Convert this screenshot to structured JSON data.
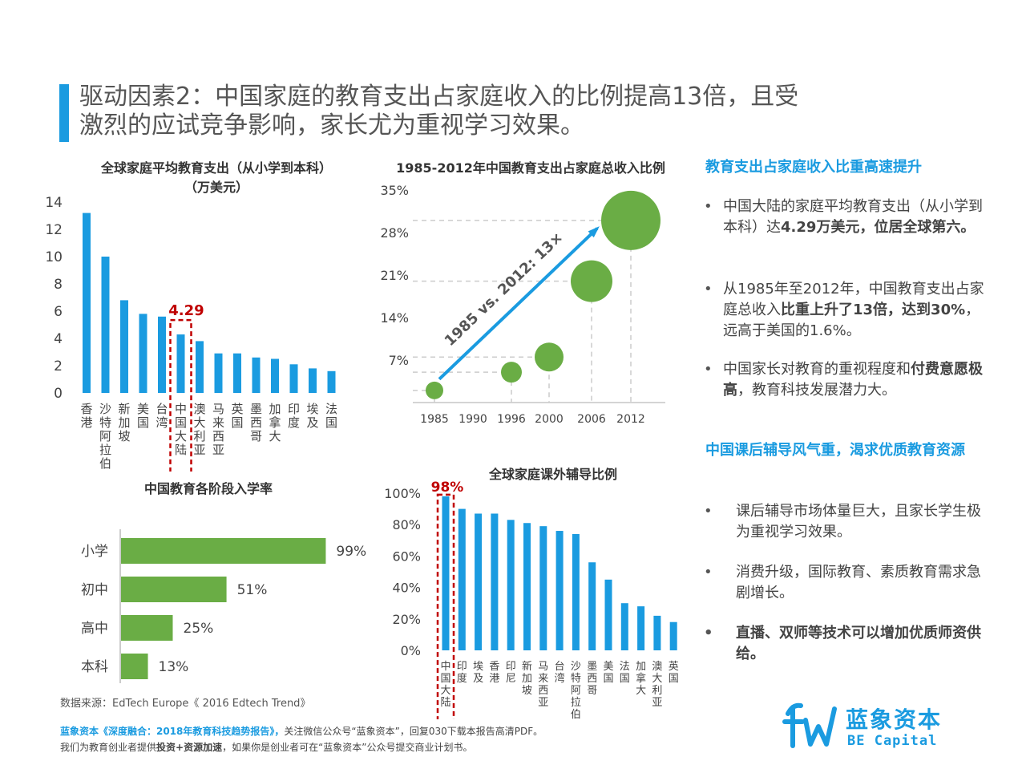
{
  "title": {
    "line1": "驱动因素2：中国家庭的教育支出占家庭收入的比例提高13倍，且受",
    "line2": "激烈的应试竞争影响，家长尤为重视学习效果。"
  },
  "colors": {
    "blue": "#1a9be0",
    "green": "#6aad45",
    "red": "#c00000",
    "title_bar": "#1a9be0"
  },
  "chart_data": [
    {
      "id": "global-edu-spend",
      "type": "bar",
      "title_line1": "全球家庭平均教育支出（从小学到本科）",
      "title_line2": "（万美元）",
      "categories": [
        "香港",
        "沙特阿拉伯",
        "新加坡",
        "美国",
        "台湾",
        "中国大陆",
        "澳大利亚",
        "马来西亚",
        "英国",
        "墨西哥",
        "加拿大",
        "印度",
        "埃及",
        "法国"
      ],
      "values": [
        13.2,
        10.0,
        6.8,
        5.8,
        5.6,
        4.29,
        3.8,
        2.9,
        2.9,
        2.6,
        2.5,
        2.1,
        1.8,
        1.6
      ],
      "yticks": [
        "14",
        "12",
        "10",
        "8",
        "6",
        "4",
        "2",
        "0"
      ],
      "ylim": [
        0,
        14
      ],
      "highlight_label": "4.29",
      "highlight_index": 5
    },
    {
      "id": "china-edu-ratio",
      "type": "scatter",
      "title": "1985-2012年中国教育支出占家庭总收入比例",
      "x": [
        "1985",
        "1990",
        "1996",
        "2000",
        "2006",
        "2012"
      ],
      "points": [
        {
          "x": "1985",
          "y": 2
        },
        {
          "x": "1996",
          "y": 5
        },
        {
          "x": "2000",
          "y": 7.5
        },
        {
          "x": "2006",
          "y": 20
        },
        {
          "x": "2012",
          "y": 30
        }
      ],
      "yticks": [
        "35%",
        "28%",
        "21%",
        "14%",
        "7%"
      ],
      "ylim": [
        0,
        35
      ],
      "arrow_label": "1985 vs. 2012: 13×"
    },
    {
      "id": "china-enrollment",
      "type": "bar",
      "orientation": "horizontal",
      "title": "中国教育各阶段入学率",
      "categories": [
        "小学",
        "初中",
        "高中",
        "本科"
      ],
      "values": [
        99,
        51,
        25,
        13
      ],
      "value_labels": [
        "99%",
        "51%",
        "25%",
        "13%"
      ]
    },
    {
      "id": "global-tutoring",
      "type": "bar",
      "title": "全球家庭课外辅导比例",
      "categories": [
        "中国大陆",
        "印度",
        "埃及",
        "香港",
        "印尼",
        "新加坡",
        "马来西亚",
        "台湾",
        "沙特阿拉伯",
        "墨西哥",
        "美国",
        "法国",
        "加拿大",
        "澳大利亚",
        "英国"
      ],
      "values": [
        98,
        90,
        87,
        87,
        83,
        81,
        79,
        76,
        74,
        56,
        45,
        30,
        28,
        22,
        18
      ],
      "yticks": [
        "100%",
        "80%",
        "60%",
        "40%",
        "20%",
        "0%"
      ],
      "ylim": [
        0,
        100
      ],
      "highlight_label": "98%",
      "highlight_index": 0
    }
  ],
  "right_panel": {
    "section1_heading": "教育支出占家庭收入比重高速提升",
    "section1_bullets": [
      {
        "normal": "中国大陆的家庭平均教育支出（从小学到本科）达",
        "bold": "4.29万美元，位居全球第六。",
        "tail": ""
      },
      {
        "normal": "从1985年至2012年，中国教育支出占家庭总收入",
        "bold": "比重上升了13倍，达到30%",
        "tail": "，远高于美国的1.6%。"
      },
      {
        "normal": "中国家长对教育的重视程度和",
        "bold": "付费意愿极高",
        "tail": "，教育科技发展潜力大。"
      }
    ],
    "section2_heading": "中国课后辅导风气重，渴求优质教育资源",
    "section2_bullets": [
      {
        "text": "课后辅导市场体量巨大，且家长学生极为重视学习效果。",
        "bold": false
      },
      {
        "text": "消费升级，国际教育、素质教育需求急剧增长。",
        "bold": false
      },
      {
        "text": "直播、双师等技术可以增加优质师资供给。",
        "bold": true
      }
    ],
    "bullet_char": "•"
  },
  "source": "数据来源：EdTech Europe《 2016 Edtech Trend》",
  "footer": {
    "line1_blue": "蓝象资本《深度融合：2018年教育科技趋势报告》，",
    "line1_rest": "关注微信公众号“蓝象资本”，回复030下载本报告高清PDF。",
    "line2_a": "我们为教育创业者提供",
    "line2_bold": "投资+资源加速",
    "line2_b": "，如果你是创业者可在“蓝象资本”公众号提交商业计划书。"
  },
  "logo": {
    "cn": "蓝象资本",
    "en": "BE Capital"
  }
}
